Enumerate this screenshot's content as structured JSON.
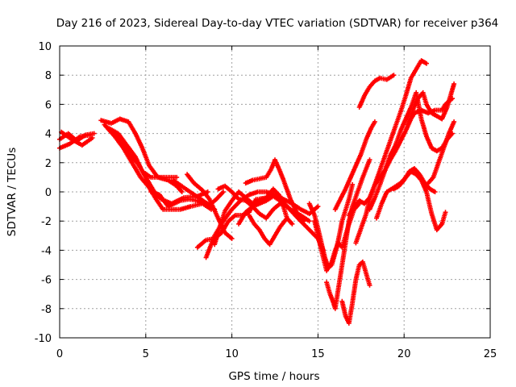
{
  "chart_data": {
    "type": "scatter",
    "title": "Day 216 of 2023, Sidereal Day-to-day VTEC variation (SDTVAR) for receiver p364",
    "xlabel": "GPS time / hours",
    "ylabel": "SDTVAR / TECUs",
    "xlim": [
      0,
      25
    ],
    "ylim": [
      -10,
      10
    ],
    "xticks": [
      "0",
      "5",
      "10",
      "15",
      "20",
      "25"
    ],
    "yticks": [
      "-10",
      "-8",
      "-6",
      "-4",
      "-2",
      "0",
      "2",
      "4",
      "6",
      "8",
      "10"
    ],
    "grid": true,
    "marker": "plus",
    "color": "#ff0000",
    "tracks": [
      [
        [
          0.0,
          3.6
        ],
        [
          0.5,
          4.0
        ],
        [
          1.0,
          3.5
        ],
        [
          1.5,
          3.9
        ],
        [
          2.0,
          4.0
        ]
      ],
      [
        [
          0.0,
          3.0
        ],
        [
          0.6,
          3.3
        ],
        [
          1.2,
          3.8
        ],
        [
          1.8,
          3.9
        ]
      ],
      [
        [
          0.1,
          4.1
        ],
        [
          0.7,
          3.6
        ],
        [
          1.3,
          3.2
        ],
        [
          1.9,
          3.7
        ]
      ],
      [
        [
          2.4,
          4.9
        ],
        [
          3.0,
          4.7
        ],
        [
          3.5,
          5.0
        ],
        [
          4.0,
          4.8
        ],
        [
          4.4,
          4.0
        ],
        [
          4.8,
          3.0
        ],
        [
          5.2,
          1.8
        ],
        [
          5.7,
          1.0
        ],
        [
          6.3,
          0.8
        ],
        [
          6.8,
          0.4
        ],
        [
          7.1,
          0.0
        ]
      ],
      [
        [
          2.6,
          4.6
        ],
        [
          3.2,
          3.8
        ],
        [
          3.7,
          3.0
        ],
        [
          4.2,
          2.0
        ],
        [
          4.7,
          1.0
        ],
        [
          5.2,
          0.3
        ],
        [
          5.6,
          -0.5
        ],
        [
          6.0,
          -1.2
        ],
        [
          6.5,
          -1.2
        ],
        [
          7.0,
          -1.2
        ],
        [
          7.6,
          -1.0
        ],
        [
          8.3,
          -0.8
        ],
        [
          8.8,
          -1.2
        ]
      ],
      [
        [
          2.8,
          4.4
        ],
        [
          3.4,
          4.0
        ],
        [
          3.9,
          3.2
        ],
        [
          4.4,
          2.4
        ],
        [
          4.8,
          1.4
        ],
        [
          5.3,
          1.0
        ],
        [
          6.0,
          1.0
        ],
        [
          6.8,
          1.0
        ]
      ],
      [
        [
          3.0,
          4.2
        ],
        [
          3.6,
          3.6
        ],
        [
          4.0,
          2.6
        ],
        [
          4.5,
          2.0
        ],
        [
          5.0,
          1.0
        ],
        [
          5.5,
          0.0
        ],
        [
          5.9,
          -0.5
        ],
        [
          6.5,
          -0.8
        ],
        [
          7.2,
          -0.4
        ],
        [
          8.0,
          -0.3
        ],
        [
          8.6,
          0.0
        ]
      ],
      [
        [
          5.3,
          0.0
        ],
        [
          5.8,
          -0.2
        ],
        [
          6.3,
          -1.0
        ],
        [
          7.0,
          -0.6
        ],
        [
          7.5,
          -0.5
        ],
        [
          8.0,
          -0.6
        ],
        [
          8.5,
          -0.9
        ],
        [
          9.0,
          -1.2
        ]
      ],
      [
        [
          6.6,
          0.8
        ],
        [
          7.2,
          0.3
        ],
        [
          7.7,
          -0.1
        ],
        [
          8.2,
          -0.5
        ],
        [
          8.7,
          -0.9
        ],
        [
          9.1,
          -0.5
        ],
        [
          9.5,
          0.0
        ]
      ],
      [
        [
          7.4,
          1.2
        ],
        [
          7.8,
          0.6
        ],
        [
          8.3,
          0.1
        ],
        [
          8.7,
          -0.5
        ],
        [
          9.2,
          -1.8
        ],
        [
          9.6,
          -2.8
        ],
        [
          10.0,
          -3.2
        ]
      ],
      [
        [
          8.0,
          -3.8
        ],
        [
          8.5,
          -3.3
        ],
        [
          9.0,
          -3.2
        ],
        [
          9.4,
          -2.8
        ],
        [
          9.8,
          -2.0
        ],
        [
          10.2,
          -1.6
        ],
        [
          10.6,
          -1.6
        ],
        [
          11.0,
          -1.4
        ],
        [
          11.4,
          -0.5
        ]
      ],
      [
        [
          8.5,
          -4.5
        ],
        [
          9.0,
          -3.0
        ],
        [
          9.5,
          -2.0
        ],
        [
          10.0,
          -1.2
        ],
        [
          10.5,
          -0.6
        ],
        [
          11.0,
          -0.2
        ],
        [
          11.5,
          0.0
        ],
        [
          12.0,
          0.0
        ],
        [
          12.5,
          -0.2
        ],
        [
          13.0,
          -0.5
        ],
        [
          13.5,
          -0.8
        ],
        [
          14.0,
          -1.2
        ],
        [
          14.5,
          -1.5
        ],
        [
          15.0,
          -1.0
        ]
      ],
      [
        [
          9.0,
          -3.6
        ],
        [
          9.3,
          -2.4
        ],
        [
          9.6,
          -1.3
        ],
        [
          10.0,
          -0.6
        ],
        [
          10.4,
          0.0
        ],
        [
          10.8,
          -0.4
        ],
        [
          11.2,
          -0.8
        ],
        [
          11.6,
          -0.6
        ],
        [
          12.0,
          -0.4
        ],
        [
          12.4,
          -0.2
        ],
        [
          12.8,
          -0.5
        ],
        [
          13.2,
          -1.0
        ],
        [
          13.6,
          -1.4
        ],
        [
          14.0,
          -1.6
        ],
        [
          14.5,
          -2.0
        ]
      ],
      [
        [
          9.2,
          0.2
        ],
        [
          9.6,
          0.4
        ],
        [
          10.0,
          0.0
        ],
        [
          10.4,
          -0.5
        ],
        [
          10.8,
          -0.6
        ],
        [
          11.2,
          -1.0
        ],
        [
          11.6,
          -1.5
        ],
        [
          12.0,
          -1.8
        ],
        [
          12.4,
          -1.2
        ],
        [
          12.8,
          -0.8
        ],
        [
          13.2,
          -1.0
        ],
        [
          13.6,
          -1.4
        ]
      ],
      [
        [
          10.4,
          -2.2
        ],
        [
          10.8,
          -1.4
        ],
        [
          11.2,
          -1.0
        ],
        [
          11.6,
          -0.8
        ],
        [
          12.0,
          -0.6
        ],
        [
          12.4,
          -0.3
        ],
        [
          12.8,
          -0.6
        ],
        [
          13.2,
          -1.0
        ],
        [
          13.6,
          -1.5
        ],
        [
          14.0,
          -2.0
        ],
        [
          14.5,
          -2.6
        ],
        [
          15.0,
          -3.2
        ],
        [
          15.3,
          -4.0
        ]
      ],
      [
        [
          10.8,
          0.6
        ],
        [
          11.2,
          0.8
        ],
        [
          11.6,
          0.9
        ],
        [
          12.0,
          1.0
        ],
        [
          12.3,
          1.6
        ],
        [
          12.5,
          2.2
        ],
        [
          12.8,
          1.4
        ],
        [
          13.0,
          0.8
        ],
        [
          13.4,
          -0.5
        ],
        [
          13.8,
          -1.5
        ],
        [
          14.2,
          -2.0
        ]
      ],
      [
        [
          11.0,
          -1.6
        ],
        [
          11.3,
          -2.2
        ],
        [
          11.6,
          -2.6
        ],
        [
          11.9,
          -3.2
        ],
        [
          12.2,
          -3.6
        ],
        [
          12.5,
          -3.0
        ],
        [
          12.8,
          -2.4
        ],
        [
          13.2,
          -1.8
        ]
      ],
      [
        [
          11.5,
          -0.5
        ],
        [
          12.0,
          -0.4
        ],
        [
          12.4,
          0.2
        ],
        [
          12.8,
          -0.3
        ],
        [
          13.2,
          -1.8
        ],
        [
          13.5,
          -2.2
        ]
      ],
      [
        [
          14.5,
          -0.8
        ],
        [
          14.8,
          -1.6
        ],
        [
          15.0,
          -2.5
        ],
        [
          15.2,
          -3.5
        ],
        [
          15.4,
          -4.5
        ],
        [
          15.6,
          -5.2
        ],
        [
          15.8,
          -5.0
        ],
        [
          16.0,
          -4.2
        ],
        [
          16.2,
          -3.2
        ],
        [
          16.4,
          -2.0
        ],
        [
          16.8,
          -0.5
        ],
        [
          17.0,
          0.5
        ]
      ],
      [
        [
          14.8,
          -2.0
        ],
        [
          15.0,
          -3.0
        ],
        [
          15.2,
          -4.0
        ],
        [
          15.5,
          -5.4
        ],
        [
          15.8,
          -4.8
        ],
        [
          16.0,
          -4.0
        ],
        [
          16.2,
          -3.5
        ],
        [
          16.4,
          -3.8
        ],
        [
          16.6,
          -3.0
        ],
        [
          16.8,
          -2.2
        ],
        [
          17.1,
          -1.2
        ],
        [
          17.4,
          -0.8
        ]
      ],
      [
        [
          15.5,
          -6.2
        ],
        [
          15.7,
          -7.0
        ],
        [
          15.9,
          -7.6
        ],
        [
          16.0,
          -8.0
        ],
        [
          16.2,
          -6.5
        ],
        [
          16.4,
          -5.0
        ],
        [
          16.6,
          -3.5
        ],
        [
          16.8,
          -2.0
        ],
        [
          17.0,
          -1.0
        ],
        [
          17.3,
          0.0
        ],
        [
          17.6,
          1.0
        ],
        [
          18.0,
          2.2
        ]
      ],
      [
        [
          16.4,
          -7.5
        ],
        [
          16.6,
          -8.5
        ],
        [
          16.8,
          -9.0
        ],
        [
          17.0,
          -7.6
        ],
        [
          17.2,
          -6.0
        ],
        [
          17.4,
          -5.0
        ],
        [
          17.6,
          -4.8
        ],
        [
          17.8,
          -5.6
        ],
        [
          18.0,
          -6.4
        ]
      ],
      [
        [
          16.8,
          -1.6
        ],
        [
          17.1,
          -1.0
        ],
        [
          17.4,
          -0.6
        ],
        [
          17.7,
          -0.8
        ],
        [
          18.0,
          -0.4
        ],
        [
          18.3,
          0.5
        ],
        [
          18.6,
          1.0
        ],
        [
          18.9,
          1.5
        ],
        [
          19.2,
          2.2
        ],
        [
          19.5,
          2.8
        ],
        [
          19.8,
          3.5
        ],
        [
          20.1,
          4.2
        ],
        [
          20.4,
          5.0
        ],
        [
          20.6,
          5.4
        ],
        [
          21.0,
          5.6
        ],
        [
          21.4,
          5.4
        ],
        [
          21.8,
          5.6
        ],
        [
          22.2,
          5.6
        ],
        [
          22.4,
          6.0
        ],
        [
          22.8,
          6.4
        ]
      ],
      [
        [
          16.0,
          -1.2
        ],
        [
          16.3,
          -0.5
        ],
        [
          16.6,
          0.2
        ],
        [
          16.9,
          1.0
        ],
        [
          17.2,
          1.8
        ],
        [
          17.5,
          2.6
        ],
        [
          17.8,
          3.6
        ],
        [
          18.1,
          4.4
        ],
        [
          18.3,
          4.8
        ]
      ],
      [
        [
          17.2,
          -3.5
        ],
        [
          17.5,
          -2.5
        ],
        [
          17.8,
          -1.5
        ],
        [
          18.0,
          -0.5
        ],
        [
          18.3,
          0.5
        ],
        [
          18.6,
          1.5
        ],
        [
          18.9,
          2.5
        ],
        [
          19.2,
          3.5
        ],
        [
          19.5,
          4.5
        ],
        [
          19.8,
          5.5
        ],
        [
          20.1,
          6.6
        ],
        [
          20.4,
          7.8
        ],
        [
          20.7,
          8.4
        ],
        [
          21.0,
          9.0
        ],
        [
          21.3,
          8.8
        ]
      ],
      [
        [
          17.4,
          5.8
        ],
        [
          17.7,
          6.6
        ],
        [
          18.0,
          7.2
        ],
        [
          18.3,
          7.6
        ],
        [
          18.6,
          7.8
        ],
        [
          19.0,
          7.7
        ],
        [
          19.4,
          8.0
        ]
      ],
      [
        [
          18.0,
          -1.2
        ],
        [
          18.3,
          -0.4
        ],
        [
          18.6,
          0.5
        ],
        [
          18.9,
          1.5
        ],
        [
          19.2,
          2.5
        ],
        [
          19.5,
          3.2
        ],
        [
          19.8,
          4.2
        ],
        [
          20.1,
          5.0
        ],
        [
          20.4,
          5.8
        ],
        [
          20.7,
          6.8
        ],
        [
          21.0,
          5.0
        ],
        [
          21.3,
          3.8
        ],
        [
          21.6,
          3.0
        ],
        [
          21.9,
          2.8
        ],
        [
          22.2,
          3.0
        ],
        [
          22.5,
          3.6
        ],
        [
          22.8,
          4.0
        ]
      ],
      [
        [
          18.4,
          -1.8
        ],
        [
          18.7,
          -0.8
        ],
        [
          19.0,
          0.0
        ],
        [
          19.4,
          0.3
        ],
        [
          19.8,
          0.6
        ],
        [
          20.1,
          1.0
        ],
        [
          20.4,
          1.4
        ],
        [
          20.7,
          1.2
        ],
        [
          21.0,
          0.8
        ],
        [
          21.3,
          0.0
        ],
        [
          21.6,
          -1.5
        ],
        [
          21.9,
          -2.6
        ],
        [
          22.2,
          -2.2
        ],
        [
          22.4,
          -1.4
        ]
      ],
      [
        [
          19.4,
          0.2
        ],
        [
          19.7,
          0.4
        ],
        [
          20.0,
          0.8
        ],
        [
          20.3,
          1.4
        ],
        [
          20.6,
          1.6
        ],
        [
          20.9,
          1.2
        ],
        [
          21.2,
          0.6
        ],
        [
          21.5,
          0.2
        ],
        [
          21.8,
          0.0
        ]
      ],
      [
        [
          20.2,
          4.6
        ],
        [
          20.5,
          5.6
        ],
        [
          20.8,
          6.4
        ],
        [
          21.1,
          6.8
        ],
        [
          21.3,
          6.0
        ],
        [
          21.6,
          5.4
        ],
        [
          21.9,
          5.2
        ],
        [
          22.2,
          5.0
        ],
        [
          22.5,
          5.8
        ],
        [
          22.8,
          7.0
        ],
        [
          22.9,
          7.4
        ]
      ],
      [
        [
          21.4,
          0.6
        ],
        [
          21.7,
          1.0
        ],
        [
          22.0,
          2.0
        ],
        [
          22.3,
          3.0
        ],
        [
          22.6,
          4.0
        ],
        [
          22.9,
          4.8
        ]
      ]
    ]
  }
}
